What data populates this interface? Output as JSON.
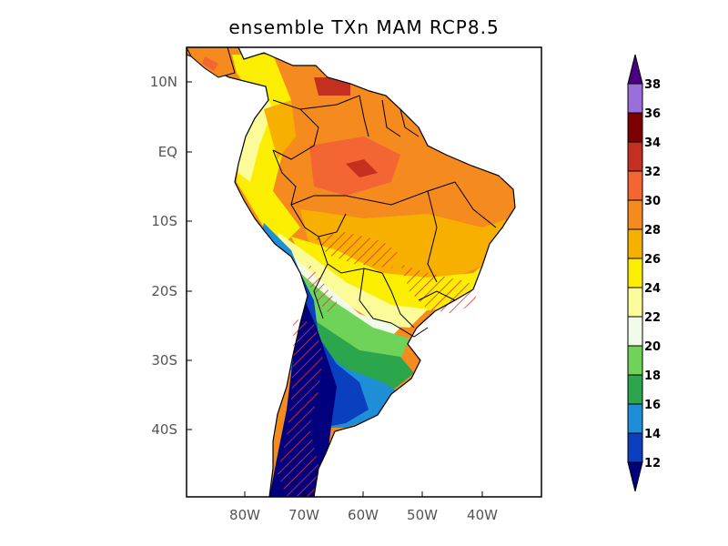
{
  "title": "ensemble TXn MAM RCP8.5",
  "lat_labels": [
    "10N",
    "EQ",
    "10S",
    "20S",
    "30S",
    "40S"
  ],
  "lon_labels": [
    "80W",
    "70W",
    "60W",
    "50W",
    "40W"
  ],
  "colorbar": {
    "levels": [
      "12",
      "14",
      "16",
      "18",
      "20",
      "22",
      "24",
      "26",
      "28",
      "30",
      "32",
      "34",
      "36",
      "38"
    ],
    "colors": [
      "#00007f",
      "#0a3fbf",
      "#1e8fd7",
      "#2ba64c",
      "#6fd35a",
      "#f2fbe9",
      "#fbfb9a",
      "#fbee00",
      "#f8b000",
      "#f58a1e",
      "#f46534",
      "#c43020",
      "#7c0000",
      "#9b6fdb",
      "#4b0082"
    ]
  },
  "colors": {
    "hatch": "#e8303a",
    "ocean": "#ffffff",
    "border": "#000000"
  }
}
